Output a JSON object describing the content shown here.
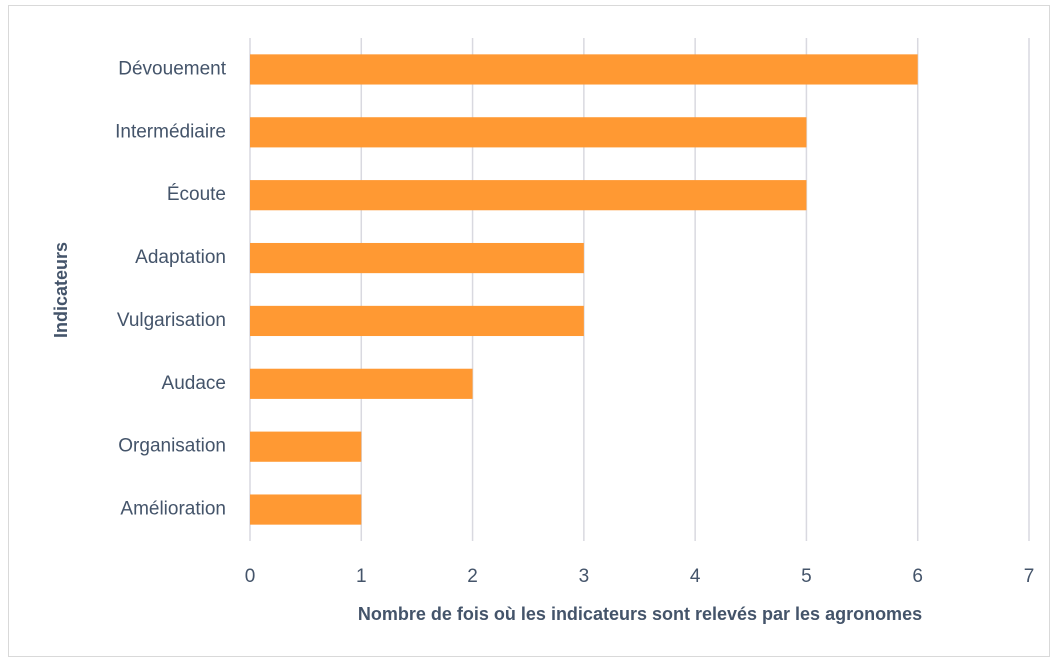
{
  "chart_data": {
    "type": "bar",
    "orientation": "horizontal",
    "categories": [
      "Dévouement",
      "Intermédiaire",
      "Écoute",
      "Adaptation",
      "Vulgarisation",
      "Audace",
      "Organisation",
      "Amélioration"
    ],
    "values": [
      6,
      5,
      5,
      3,
      3,
      2,
      1,
      1
    ],
    "color": "#ff9933",
    "xlim": [
      0,
      7
    ],
    "xticks": [
      0,
      1,
      2,
      3,
      4,
      5,
      6,
      7
    ],
    "grid": true,
    "xlabel": "Nombre de fois où les indicateurs sont relevés par les agronomes",
    "ylabel": "Indicateurs"
  }
}
